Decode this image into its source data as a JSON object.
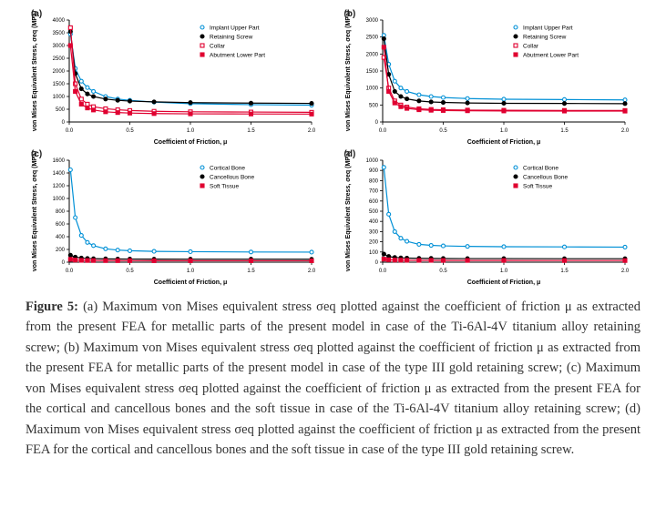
{
  "figure_label": "Figure 5:",
  "caption_parts": {
    "a": "(a) Maximum von Mises equivalent stress σeq plotted against the coefficient of friction μ as extracted from the present FEA for metallic parts of the present model in case of the Ti-6Al-4V titanium alloy retaining screw; ",
    "b": "(b) Maximum von Mises equivalent stress σeq plotted against the coefficient of friction μ as extracted from the present FEA for metallic parts of the present model in case of the type III gold retaining screw; ",
    "c": "(c) Maximum von Mises equivalent stress σeq plotted against the coefficient of friction μ as extracted from the present FEA for the cortical and cancellous bones and the soft tissue in case of the Ti-6Al-4V titanium alloy retaining screw; ",
    "d": "(d) Maximum von Mises equivalent stress σeq plotted against the coefficient of friction μ as extracted from the present FEA for the cortical and cancellous bones and the soft tissue in case of the type III gold retaining screw."
  },
  "panels": {
    "a": {
      "letter": "(a)",
      "type": "scatter-line",
      "xlabel": "Coefficient of Friction, μ",
      "ylabel": "von Mises Equivalent Stress, σeq (MPa)",
      "xlim": [
        0,
        2.0
      ],
      "xticks": [
        0.0,
        0.5,
        1.0,
        1.5,
        2.0
      ],
      "ylim": [
        0,
        4000
      ],
      "yticks": [
        0,
        500,
        1000,
        1500,
        2000,
        2500,
        3000,
        3500,
        4000
      ],
      "title_fontsize": 7,
      "label_fontsize": 7,
      "tick_fontsize": 6,
      "background_color": "#ffffff",
      "axis_color": "#000000",
      "marker_size": 4,
      "line_width": 1.2,
      "legend_pos": "upper-right",
      "series": [
        {
          "name": "Implant Upper Part",
          "marker": "circle",
          "fill": "none",
          "color": "#0090d6",
          "x": [
            0.01,
            0.05,
            0.1,
            0.15,
            0.2,
            0.3,
            0.4,
            0.5,
            0.7,
            1.0,
            1.5,
            2.0
          ],
          "y": [
            3450,
            2100,
            1600,
            1350,
            1200,
            1000,
            900,
            850,
            780,
            720,
            680,
            660
          ]
        },
        {
          "name": "Retaining Screw",
          "marker": "circle",
          "fill": "solid",
          "color": "#000000",
          "x": [
            0.01,
            0.05,
            0.1,
            0.15,
            0.2,
            0.3,
            0.4,
            0.5,
            0.7,
            1.0,
            1.5,
            2.0
          ],
          "y": [
            3550,
            1900,
            1300,
            1100,
            1000,
            900,
            850,
            820,
            790,
            760,
            740,
            730
          ]
        },
        {
          "name": "Collar",
          "marker": "square",
          "fill": "none",
          "color": "#e00030",
          "x": [
            0.01,
            0.05,
            0.1,
            0.15,
            0.2,
            0.3,
            0.4,
            0.5,
            0.7,
            1.0,
            1.5,
            2.0
          ],
          "y": [
            3700,
            1500,
            900,
            700,
            600,
            520,
            480,
            450,
            420,
            400,
            390,
            380
          ]
        },
        {
          "name": "Abutment Lower Part",
          "marker": "square",
          "fill": "solid",
          "color": "#e00030",
          "x": [
            0.01,
            0.05,
            0.1,
            0.15,
            0.2,
            0.3,
            0.4,
            0.5,
            0.7,
            1.0,
            1.5,
            2.0
          ],
          "y": [
            3000,
            1200,
            700,
            550,
            470,
            400,
            370,
            350,
            330,
            320,
            315,
            310
          ]
        }
      ]
    },
    "b": {
      "letter": "(b)",
      "type": "scatter-line",
      "xlabel": "Coefficient of Friction, μ",
      "ylabel": "von Mises Equivalent Stress, σeq (MPa)",
      "xlim": [
        0,
        2.0
      ],
      "xticks": [
        0.0,
        0.5,
        1.0,
        1.5,
        2.0
      ],
      "ylim": [
        0,
        3000
      ],
      "yticks": [
        0,
        500,
        1000,
        1500,
        2000,
        2500,
        3000
      ],
      "title_fontsize": 7,
      "label_fontsize": 7,
      "tick_fontsize": 6,
      "background_color": "#ffffff",
      "axis_color": "#000000",
      "marker_size": 4,
      "line_width": 1.2,
      "legend_pos": "upper-right",
      "series": [
        {
          "name": "Implant Upper Part",
          "marker": "circle",
          "fill": "none",
          "color": "#0090d6",
          "x": [
            0.01,
            0.05,
            0.1,
            0.15,
            0.2,
            0.3,
            0.4,
            0.5,
            0.7,
            1.0,
            1.5,
            2.0
          ],
          "y": [
            2550,
            1700,
            1200,
            1000,
            900,
            800,
            750,
            720,
            690,
            670,
            660,
            650
          ]
        },
        {
          "name": "Retaining Screw",
          "marker": "circle",
          "fill": "solid",
          "color": "#000000",
          "x": [
            0.01,
            0.05,
            0.1,
            0.15,
            0.2,
            0.3,
            0.4,
            0.5,
            0.7,
            1.0,
            1.5,
            2.0
          ],
          "y": [
            2450,
            1400,
            900,
            750,
            680,
            620,
            590,
            575,
            560,
            550,
            545,
            540
          ]
        },
        {
          "name": "Collar",
          "marker": "square",
          "fill": "none",
          "color": "#e00030",
          "x": [
            0.01,
            0.05,
            0.1,
            0.15,
            0.2,
            0.3,
            0.4,
            0.5,
            0.7,
            1.0,
            1.5,
            2.0
          ],
          "y": [
            1900,
            1000,
            620,
            500,
            440,
            390,
            370,
            360,
            350,
            345,
            340,
            338
          ]
        },
        {
          "name": "Abutment Lower Part",
          "marker": "square",
          "fill": "solid",
          "color": "#e00030",
          "x": [
            0.01,
            0.05,
            0.1,
            0.15,
            0.2,
            0.3,
            0.4,
            0.5,
            0.7,
            1.0,
            1.5,
            2.0
          ],
          "y": [
            2200,
            900,
            560,
            450,
            400,
            360,
            345,
            338,
            330,
            325,
            322,
            320
          ]
        }
      ]
    },
    "c": {
      "letter": "(c)",
      "type": "scatter-line",
      "xlabel": "Coefficient of Friction, μ",
      "ylabel": "von Mises Equivalent Stress, σeq (MPa)",
      "xlim": [
        0,
        2.0
      ],
      "xticks": [
        0.0,
        0.5,
        1.0,
        1.5,
        2.0
      ],
      "ylim": [
        0,
        1600
      ],
      "yticks": [
        0,
        200,
        400,
        600,
        800,
        1000,
        1200,
        1400,
        1600
      ],
      "title_fontsize": 7,
      "label_fontsize": 7,
      "tick_fontsize": 6,
      "background_color": "#ffffff",
      "axis_color": "#000000",
      "marker_size": 4,
      "line_width": 1.2,
      "legend_pos": "upper-right",
      "series": [
        {
          "name": "Cortical Bone",
          "marker": "circle",
          "fill": "none",
          "color": "#0090d6",
          "x": [
            0.01,
            0.05,
            0.1,
            0.15,
            0.2,
            0.3,
            0.4,
            0.5,
            0.7,
            1.0,
            1.5,
            2.0
          ],
          "y": [
            1450,
            700,
            420,
            310,
            260,
            210,
            190,
            180,
            170,
            165,
            160,
            158
          ]
        },
        {
          "name": "Cancellous Bone",
          "marker": "circle",
          "fill": "solid",
          "color": "#000000",
          "x": [
            0.01,
            0.05,
            0.1,
            0.15,
            0.2,
            0.3,
            0.4,
            0.5,
            0.7,
            1.0,
            1.5,
            2.0
          ],
          "y": [
            110,
            80,
            65,
            58,
            55,
            52,
            50,
            49,
            48,
            47,
            47,
            46
          ]
        },
        {
          "name": "Soft Tissue",
          "marker": "square",
          "fill": "solid",
          "color": "#e00030",
          "x": [
            0.01,
            0.05,
            0.1,
            0.15,
            0.2,
            0.3,
            0.4,
            0.5,
            0.7,
            1.0,
            1.5,
            2.0
          ],
          "y": [
            45,
            34,
            29,
            27,
            26,
            25,
            24,
            24,
            23,
            23,
            23,
            22
          ]
        }
      ]
    },
    "d": {
      "letter": "(d)",
      "type": "scatter-line",
      "xlabel": "Coefficient of Friction, μ",
      "ylabel": "von Mises Equivalent Stress, σeq (MPa)",
      "xlim": [
        0,
        2.0
      ],
      "xticks": [
        0.0,
        0.5,
        1.0,
        1.5,
        2.0
      ],
      "ylim": [
        0,
        1000
      ],
      "yticks": [
        0,
        100,
        200,
        300,
        400,
        500,
        600,
        700,
        800,
        900,
        1000
      ],
      "title_fontsize": 7,
      "label_fontsize": 7,
      "tick_fontsize": 6,
      "background_color": "#ffffff",
      "axis_color": "#000000",
      "marker_size": 4,
      "line_width": 1.2,
      "legend_pos": "upper-right",
      "series": [
        {
          "name": "Cortical Bone",
          "marker": "circle",
          "fill": "none",
          "color": "#0090d6",
          "x": [
            0.01,
            0.05,
            0.1,
            0.15,
            0.2,
            0.3,
            0.4,
            0.5,
            0.7,
            1.0,
            1.5,
            2.0
          ],
          "y": [
            930,
            470,
            300,
            235,
            205,
            175,
            165,
            160,
            155,
            152,
            150,
            148
          ]
        },
        {
          "name": "Cancellous Bone",
          "marker": "circle",
          "fill": "solid",
          "color": "#000000",
          "x": [
            0.01,
            0.05,
            0.1,
            0.15,
            0.2,
            0.3,
            0.4,
            0.5,
            0.7,
            1.0,
            1.5,
            2.0
          ],
          "y": [
            80,
            56,
            46,
            42,
            40,
            38,
            37,
            36,
            35,
            35,
            34,
            34
          ]
        },
        {
          "name": "Soft Tissue",
          "marker": "square",
          "fill": "solid",
          "color": "#e00030",
          "x": [
            0.01,
            0.05,
            0.1,
            0.15,
            0.2,
            0.3,
            0.4,
            0.5,
            0.7,
            1.0,
            1.5,
            2.0
          ],
          "y": [
            30,
            24,
            21,
            20,
            19,
            18,
            18,
            17,
            17,
            17,
            16,
            16
          ]
        }
      ]
    }
  }
}
